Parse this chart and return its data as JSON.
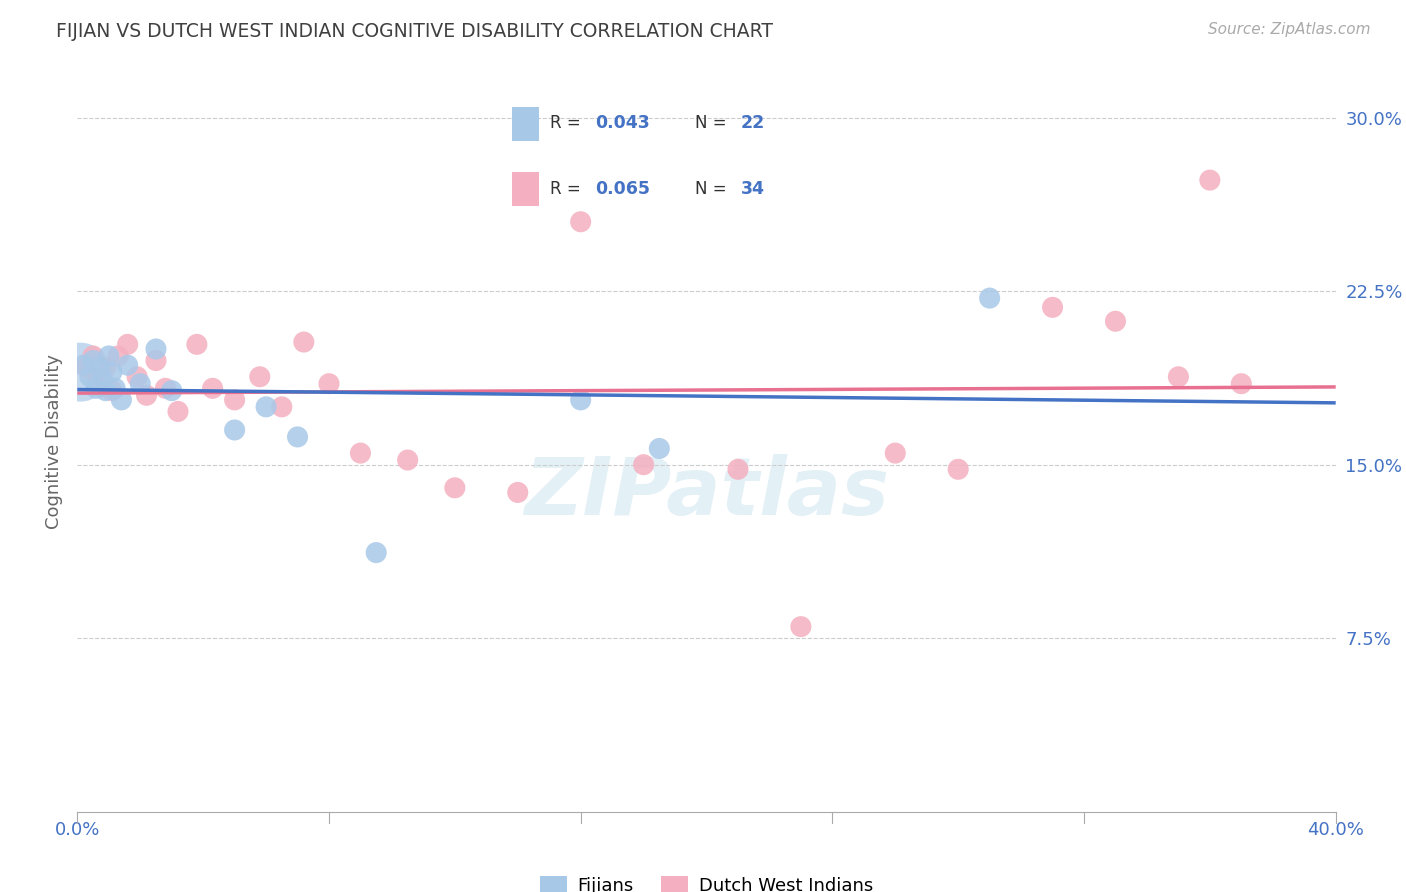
{
  "title": "FIJIAN VS DUTCH WEST INDIAN COGNITIVE DISABILITY CORRELATION CHART",
  "source": "Source: ZipAtlas.com",
  "ylabel": "Cognitive Disability",
  "xlim": [
    0.0,
    0.4
  ],
  "ylim": [
    0.0,
    0.32
  ],
  "yticks": [
    0.075,
    0.15,
    0.225,
    0.3
  ],
  "ytick_labels": [
    "7.5%",
    "15.0%",
    "22.5%",
    "30.0%"
  ],
  "fijian_color": "#a8c8e8",
  "dutch_color": "#f4b0c0",
  "fijian_line_color": "#4472c4",
  "dutch_line_color": "#e87090",
  "blue_text_color": "#4472c4",
  "title_color": "#404040",
  "fijian_r": "0.043",
  "fijian_n": "22",
  "dutch_r": "0.065",
  "dutch_n": "34",
  "watermark": "ZIPatlas",
  "legend_label_fijian": "Fijians",
  "legend_label_dutch": "Dutch West Indians",
  "fijian_x": [
    0.002,
    0.004,
    0.005,
    0.006,
    0.007,
    0.008,
    0.009,
    0.01,
    0.011,
    0.012,
    0.014,
    0.016,
    0.02,
    0.025,
    0.03,
    0.05,
    0.06,
    0.07,
    0.095,
    0.16,
    0.185,
    0.29
  ],
  "fijian_y": [
    0.193,
    0.188,
    0.195,
    0.183,
    0.192,
    0.187,
    0.182,
    0.197,
    0.19,
    0.183,
    0.178,
    0.193,
    0.185,
    0.2,
    0.182,
    0.165,
    0.175,
    0.162,
    0.112,
    0.178,
    0.157,
    0.222
  ],
  "dutch_x": [
    0.003,
    0.005,
    0.007,
    0.009,
    0.011,
    0.013,
    0.016,
    0.019,
    0.022,
    0.025,
    0.028,
    0.032,
    0.038,
    0.043,
    0.05,
    0.058,
    0.065,
    0.072,
    0.08,
    0.09,
    0.105,
    0.12,
    0.14,
    0.16,
    0.18,
    0.21,
    0.23,
    0.26,
    0.28,
    0.31,
    0.33,
    0.35,
    0.36,
    0.37
  ],
  "dutch_y": [
    0.192,
    0.197,
    0.187,
    0.192,
    0.182,
    0.197,
    0.202,
    0.188,
    0.18,
    0.195,
    0.183,
    0.173,
    0.202,
    0.183,
    0.178,
    0.188,
    0.175,
    0.203,
    0.185,
    0.155,
    0.152,
    0.14,
    0.138,
    0.255,
    0.15,
    0.148,
    0.08,
    0.155,
    0.148,
    0.218,
    0.212,
    0.188,
    0.273,
    0.185
  ],
  "cluster_x": [
    0.001
  ],
  "cluster_y": [
    0.19
  ],
  "cluster_size": 1800
}
